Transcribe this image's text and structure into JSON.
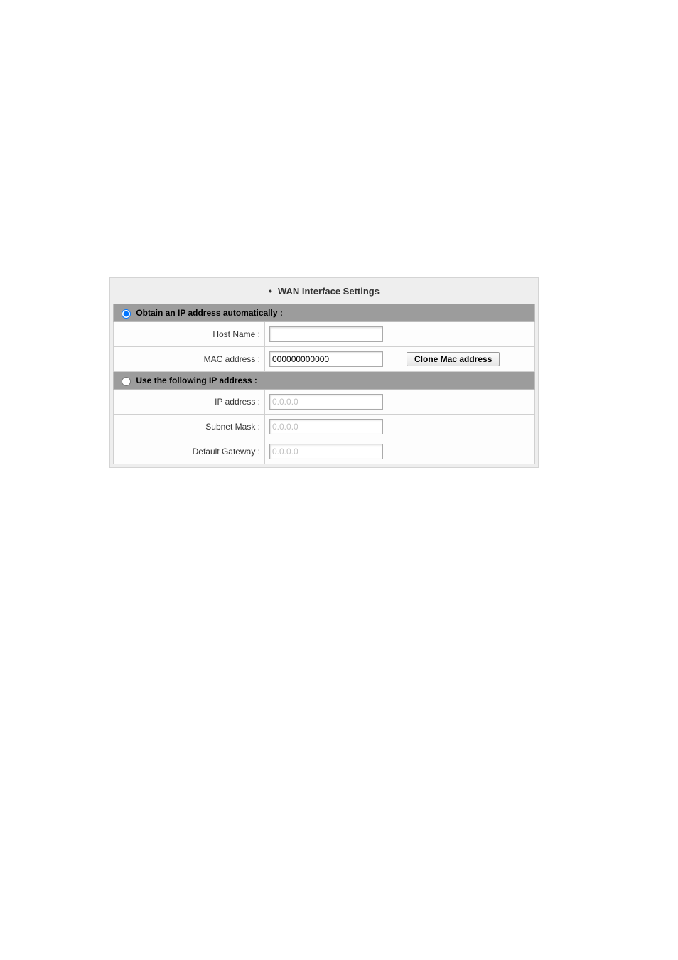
{
  "panel": {
    "title": "WAN Interface Settings"
  },
  "auto": {
    "radioLabel": "Obtain an IP address automatically :",
    "checked": true,
    "hostName": {
      "label": "Host Name :",
      "value": ""
    },
    "mac": {
      "label": "MAC address :",
      "value": "000000000000"
    },
    "cloneButton": "Clone Mac address"
  },
  "manual": {
    "radioLabel": "Use the following IP address :",
    "checked": false,
    "ip": {
      "label": "IP address :",
      "value": "0.0.0.0"
    },
    "subnet": {
      "label": "Subnet Mask :",
      "value": "0.0.0.0"
    },
    "gateway": {
      "label": "Default Gateway :",
      "value": "0.0.0.0"
    }
  }
}
